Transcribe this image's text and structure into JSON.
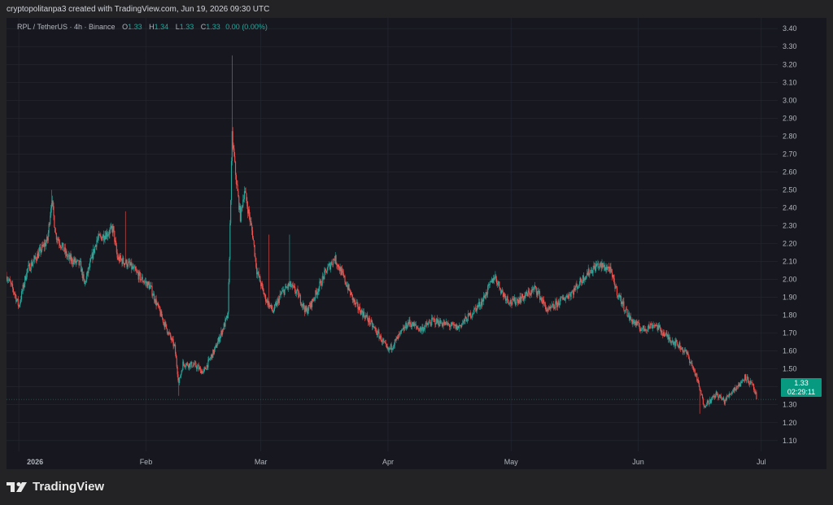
{
  "header": {
    "created_by": "cryptopolitanpa3 created with TradingView.com, Jun 19, 2026 09:30 UTC"
  },
  "legend": {
    "symbol": "RPL / TetherUS · 4h · Binance",
    "o_label": "O",
    "o_value": "1.33",
    "h_label": "H",
    "h_value": "1.34",
    "l_label": "L",
    "l_value": "1.33",
    "c_label": "C",
    "c_value": "1.33",
    "change": "0.00 (0.00%)"
  },
  "price_tag": {
    "price": "1.33",
    "countdown": "02:29:11"
  },
  "footer": {
    "brand": "TradingView",
    "logo_icon": "tradingview-logo-icon"
  },
  "colors": {
    "up": "#26a69a",
    "down": "#ef5350",
    "background": "#17181f",
    "grid": "#262833",
    "last_price": "#089981"
  },
  "chart_data": {
    "type": "candlestick",
    "symbol": "RPL / TetherUS",
    "interval": "4h",
    "exchange": "Binance",
    "x_ticks": [
      {
        "label": "2026",
        "date": "2026-01-01"
      },
      {
        "label": "Feb",
        "date": "2026-02-01"
      },
      {
        "label": "Mar",
        "date": "2026-03-01"
      },
      {
        "label": "Apr",
        "date": "2026-04-01"
      },
      {
        "label": "May",
        "date": "2026-05-01"
      },
      {
        "label": "Jun",
        "date": "2026-06-01"
      },
      {
        "label": "Jul",
        "date": "2026-07-01"
      }
    ],
    "y_ticks": [
      "3.40",
      "3.30",
      "3.20",
      "3.10",
      "3.00",
      "2.90",
      "2.80",
      "2.70",
      "2.60",
      "2.50",
      "2.40",
      "2.30",
      "2.20",
      "2.10",
      "2.00",
      "1.90",
      "1.80",
      "1.70",
      "1.60",
      "1.50",
      "1.40",
      "1.30",
      "1.20",
      "1.10"
    ],
    "y_range": [
      1.04,
      3.46
    ],
    "x_range": [
      "2025-12-29",
      "2026-07-05"
    ],
    "last_price": 1.33,
    "grid": true,
    "price_path": [
      [
        "2025-12-29",
        2.02
      ],
      [
        "2025-12-31",
        1.92
      ],
      [
        "2026-01-01",
        1.85
      ],
      [
        "2026-01-03",
        2.05
      ],
      [
        "2026-01-06",
        2.15
      ],
      [
        "2026-01-08",
        2.22
      ],
      [
        "2026-01-09",
        2.45
      ],
      [
        "2026-01-10",
        2.25
      ],
      [
        "2026-01-13",
        2.12
      ],
      [
        "2026-01-16",
        2.08
      ],
      [
        "2026-01-17",
        1.97
      ],
      [
        "2026-01-20",
        2.22
      ],
      [
        "2026-01-22",
        2.25
      ],
      [
        "2026-01-24",
        2.28
      ],
      [
        "2026-01-25",
        2.12
      ],
      [
        "2026-01-28",
        2.08
      ],
      [
        "2026-01-31",
        2.0
      ],
      [
        "2026-02-02",
        1.96
      ],
      [
        "2026-02-05",
        1.78
      ],
      [
        "2026-02-08",
        1.62
      ],
      [
        "2026-02-09",
        1.42
      ],
      [
        "2026-02-10",
        1.53
      ],
      [
        "2026-02-13",
        1.52
      ],
      [
        "2026-02-15",
        1.48
      ],
      [
        "2026-02-18",
        1.62
      ],
      [
        "2026-02-21",
        1.8
      ],
      [
        "2026-02-22",
        2.8
      ],
      [
        "2026-02-23",
        2.55
      ],
      [
        "2026-02-24",
        2.35
      ],
      [
        "2026-02-25",
        2.5
      ],
      [
        "2026-02-27",
        2.25
      ],
      [
        "2026-02-28",
        2.05
      ],
      [
        "2026-03-02",
        1.9
      ],
      [
        "2026-03-04",
        1.82
      ],
      [
        "2026-03-06",
        1.92
      ],
      [
        "2026-03-08",
        1.97
      ],
      [
        "2026-03-10",
        1.92
      ],
      [
        "2026-03-12",
        1.82
      ],
      [
        "2026-03-13",
        1.85
      ],
      [
        "2026-03-15",
        1.95
      ],
      [
        "2026-03-17",
        2.05
      ],
      [
        "2026-03-19",
        2.12
      ],
      [
        "2026-03-21",
        2.02
      ],
      [
        "2026-03-24",
        1.86
      ],
      [
        "2026-03-27",
        1.78
      ],
      [
        "2026-03-30",
        1.68
      ],
      [
        "2026-04-01",
        1.6
      ],
      [
        "2026-04-03",
        1.66
      ],
      [
        "2026-04-06",
        1.76
      ],
      [
        "2026-04-09",
        1.72
      ],
      [
        "2026-04-12",
        1.77
      ],
      [
        "2026-04-15",
        1.75
      ],
      [
        "2026-04-18",
        1.73
      ],
      [
        "2026-04-21",
        1.8
      ],
      [
        "2026-04-24",
        1.88
      ],
      [
        "2026-04-27",
        2.02
      ],
      [
        "2026-04-29",
        1.92
      ],
      [
        "2026-05-01",
        1.87
      ],
      [
        "2026-05-04",
        1.9
      ],
      [
        "2026-05-07",
        1.95
      ],
      [
        "2026-05-10",
        1.82
      ],
      [
        "2026-05-13",
        1.88
      ],
      [
        "2026-05-16",
        1.93
      ],
      [
        "2026-05-19",
        2.02
      ],
      [
        "2026-05-22",
        2.08
      ],
      [
        "2026-05-25",
        2.06
      ],
      [
        "2026-05-27",
        1.92
      ],
      [
        "2026-05-30",
        1.78
      ],
      [
        "2026-06-02",
        1.72
      ],
      [
        "2026-06-05",
        1.75
      ],
      [
        "2026-06-08",
        1.68
      ],
      [
        "2026-06-11",
        1.63
      ],
      [
        "2026-06-13",
        1.58
      ],
      [
        "2026-06-15",
        1.47
      ],
      [
        "2026-06-17",
        1.3
      ],
      [
        "2026-06-19",
        1.33
      ],
      [
        "2026-06-20",
        1.36
      ],
      [
        "2026-06-22",
        1.32
      ],
      [
        "2026-06-24",
        1.38
      ],
      [
        "2026-06-26",
        1.42
      ],
      [
        "2026-06-27",
        1.46
      ],
      [
        "2026-06-29",
        1.4
      ],
      [
        "2026-06-30",
        1.33
      ]
    ],
    "spikes": [
      {
        "date": "2026-01-09",
        "high": 2.5
      },
      {
        "date": "2026-01-27",
        "high": 2.38
      },
      {
        "date": "2026-02-09",
        "low": 1.35
      },
      {
        "date": "2026-02-22",
        "high": 3.25
      },
      {
        "date": "2026-03-03",
        "high": 2.25
      },
      {
        "date": "2026-03-08",
        "high": 2.25
      },
      {
        "date": "2026-06-16",
        "low": 1.25
      }
    ]
  }
}
